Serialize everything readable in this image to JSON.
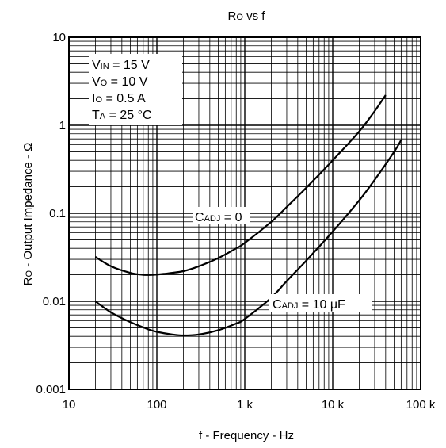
{
  "chart_data": {
    "type": "line",
    "title": {
      "main": "R",
      "sub": "O",
      "rest": " vs f"
    },
    "xlabel": "f - Frequency - Hz",
    "ylabel": {
      "main": "R",
      "sub": "O",
      "rest": " - Output Impedance - Ω"
    },
    "x_scale": "log",
    "y_scale": "log",
    "xlim": [
      10,
      100000
    ],
    "ylim": [
      0.001,
      10
    ],
    "grid": true,
    "x_ticks": [
      {
        "value": 10,
        "label": "10"
      },
      {
        "value": 100,
        "label": "100"
      },
      {
        "value": 1000,
        "label": "1 k"
      },
      {
        "value": 10000,
        "label": "10 k"
      },
      {
        "value": 100000,
        "label": "100 k"
      }
    ],
    "y_ticks": [
      {
        "value": 0.001,
        "label": "0.001"
      },
      {
        "value": 0.01,
        "label": "0.01"
      },
      {
        "value": 0.1,
        "label": "0.1"
      },
      {
        "value": 1,
        "label": "1"
      },
      {
        "value": 10,
        "label": "10"
      }
    ],
    "conditions": [
      {
        "main": "V",
        "sub": "IN",
        "rest": " = 15 V"
      },
      {
        "main": "V",
        "sub": "O",
        "rest": " = 10 V"
      },
      {
        "main": "I",
        "sub": "O",
        "rest": " = 0.5 A"
      },
      {
        "main": "T",
        "sub": "A",
        "rest": " = 25 °C"
      }
    ],
    "series": [
      {
        "label": {
          "main": "C",
          "sub": "ADJ",
          "rest": " = 0"
        },
        "x": [
          20,
          30,
          50,
          70,
          90,
          120,
          200,
          300,
          500,
          800,
          1000,
          2000,
          3000,
          5000,
          10000,
          20000,
          30000,
          40000
        ],
        "y": [
          0.032,
          0.025,
          0.021,
          0.02,
          0.02,
          0.0205,
          0.022,
          0.025,
          0.031,
          0.04,
          0.046,
          0.08,
          0.118,
          0.195,
          0.4,
          0.85,
          1.45,
          2.2
        ]
      },
      {
        "label": {
          "main": "C",
          "sub": "ADJ",
          "rest": " = 10 μF"
        },
        "x": [
          20,
          30,
          50,
          80,
          100,
          150,
          200,
          300,
          500,
          800,
          1000,
          2000,
          3000,
          5000,
          10000,
          20000,
          30000,
          50000,
          60000
        ],
        "y": [
          0.01,
          0.0075,
          0.0058,
          0.0048,
          0.0045,
          0.0042,
          0.0041,
          0.0042,
          0.0047,
          0.0056,
          0.0063,
          0.011,
          0.017,
          0.029,
          0.062,
          0.14,
          0.24,
          0.5,
          0.68
        ]
      }
    ]
  }
}
